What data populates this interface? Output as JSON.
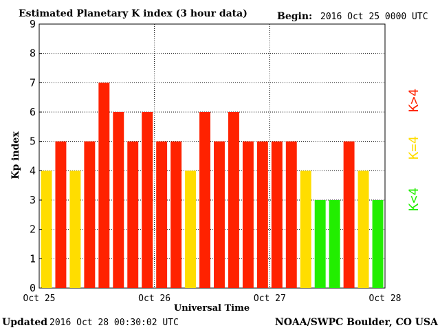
{
  "header": {
    "title": "Estimated Planetary K index (3 hour data)",
    "begin_label": "Begin:",
    "begin_value": "2016 Oct 25 0000 UTC"
  },
  "footer": {
    "updated_label": "Updated",
    "updated_value": "2016 Oct 28 00:30:02 UTC",
    "source": "NOAA/SWPC Boulder, CO USA"
  },
  "legend": [
    {
      "label": "K>4",
      "color": "#ff2200"
    },
    {
      "label": "K=4",
      "color": "#ffdd00"
    },
    {
      "label": "K<4",
      "color": "#22ee00"
    }
  ],
  "colors": {
    "k_gt_4": "#ff2200",
    "k_eq_4": "#ffdd00",
    "k_lt_4": "#22ee00",
    "axis": "#000000",
    "grid": "#000000"
  },
  "chart_data": {
    "type": "bar",
    "ylabel": "Kp index",
    "xlabel": "Universal Time",
    "ylim": [
      0,
      9
    ],
    "yticks": [
      0,
      1,
      2,
      3,
      4,
      5,
      6,
      7,
      8,
      9
    ],
    "xtick_labels": [
      "Oct 25",
      "Oct 26",
      "Oct 27",
      "Oct 28"
    ],
    "grid": true,
    "legend_position": "right",
    "values": [
      4,
      5,
      4,
      5,
      7,
      6,
      5,
      6,
      5,
      5,
      4,
      6,
      5,
      6,
      5,
      5,
      5,
      5,
      4,
      3,
      3,
      5,
      4,
      3
    ]
  }
}
